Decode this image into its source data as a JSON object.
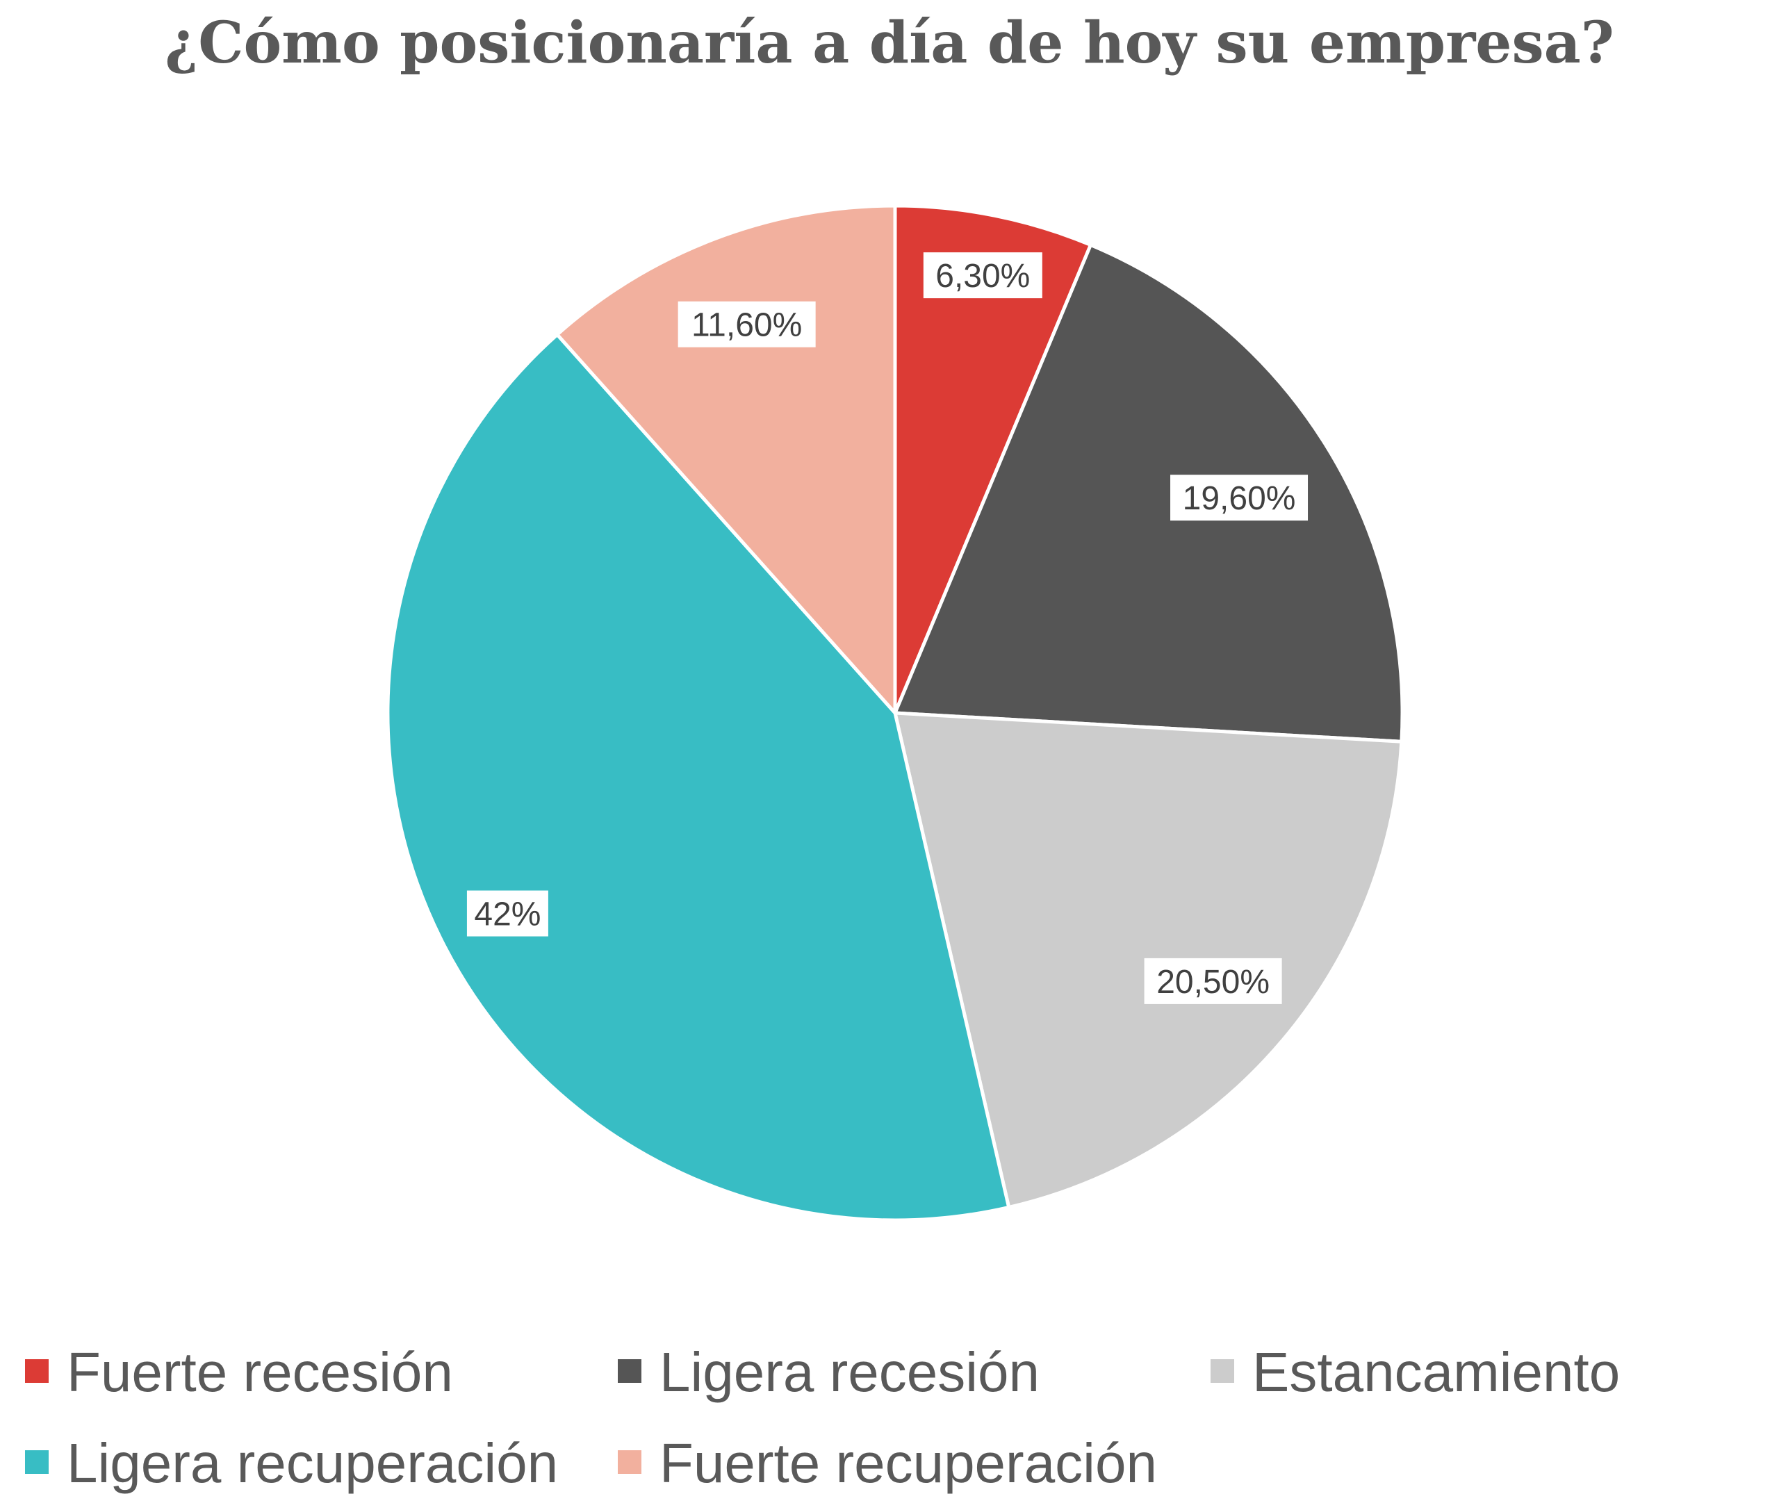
{
  "chart_data": {
    "type": "pie",
    "title": "¿Cómo posicionaría a día de hoy su empresa?",
    "categories": [
      "Fuerte recesión",
      "Ligera recesión",
      "Estancamiento",
      "Ligera recuperación",
      "Fuerte recuperación"
    ],
    "values": [
      6.3,
      19.6,
      20.5,
      42,
      11.6
    ],
    "data_labels": [
      "6,30%",
      "19,60%",
      "20,50%",
      "42%",
      "11,60%"
    ],
    "colors": [
      "#DC3B35",
      "#555555",
      "#CCCCCC",
      "#38BDC4",
      "#F2B09E"
    ],
    "start_angle": "top, clockwise",
    "legend_position": "bottom"
  }
}
